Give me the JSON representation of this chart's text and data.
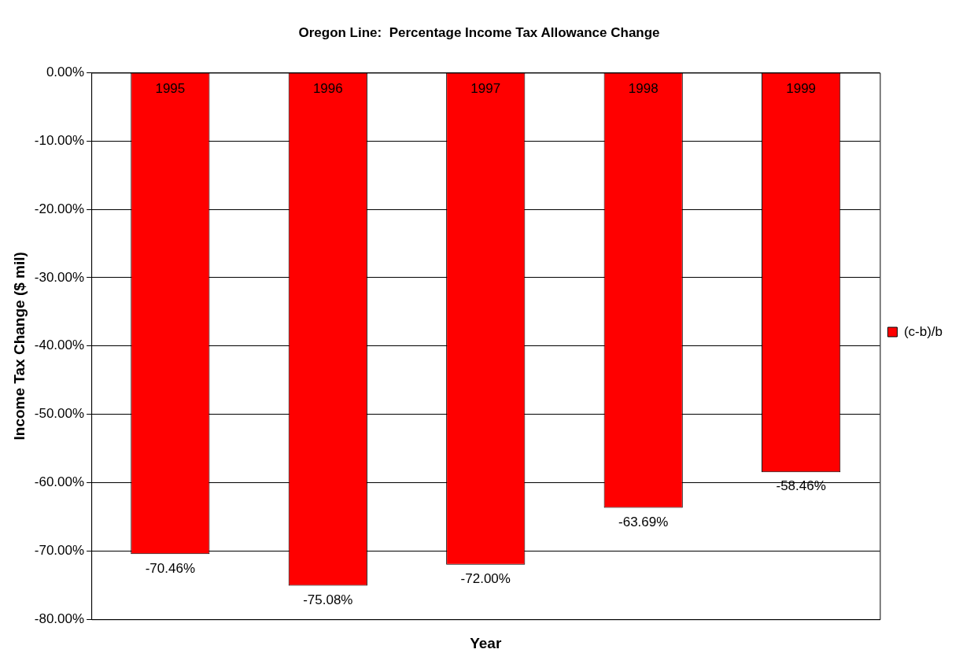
{
  "chart_data": {
    "type": "bar",
    "title": "Oregon Line:  Percentage Income Tax Allowance Change",
    "xlabel": "Year",
    "ylabel": "Income Tax Change ($ mil)",
    "categories": [
      "1995",
      "1996",
      "1997",
      "1998",
      "1999"
    ],
    "series": [
      {
        "name": "(c-b)/b",
        "color": "#ff0000",
        "values": [
          -70.46,
          -75.08,
          -72.0,
          -63.69,
          -58.46
        ],
        "value_labels": [
          "-70.46%",
          "-75.08%",
          "-72.00%",
          "-63.69%",
          "-58.46%"
        ]
      }
    ],
    "ylim": [
      -80,
      0
    ],
    "yticks": [
      {
        "value": -80,
        "label": "-80.00%"
      },
      {
        "value": -70,
        "label": "-70.00%"
      },
      {
        "value": -60,
        "label": "-60.00%"
      },
      {
        "value": -50,
        "label": "-50.00%"
      },
      {
        "value": -40,
        "label": "-40.00%"
      },
      {
        "value": -30,
        "label": "-30.00%"
      },
      {
        "value": -20,
        "label": "-20.00%"
      },
      {
        "value": -10,
        "label": "-10.00%"
      },
      {
        "value": 0,
        "label": "0.00%"
      }
    ],
    "grid": "y",
    "legend": "right"
  }
}
